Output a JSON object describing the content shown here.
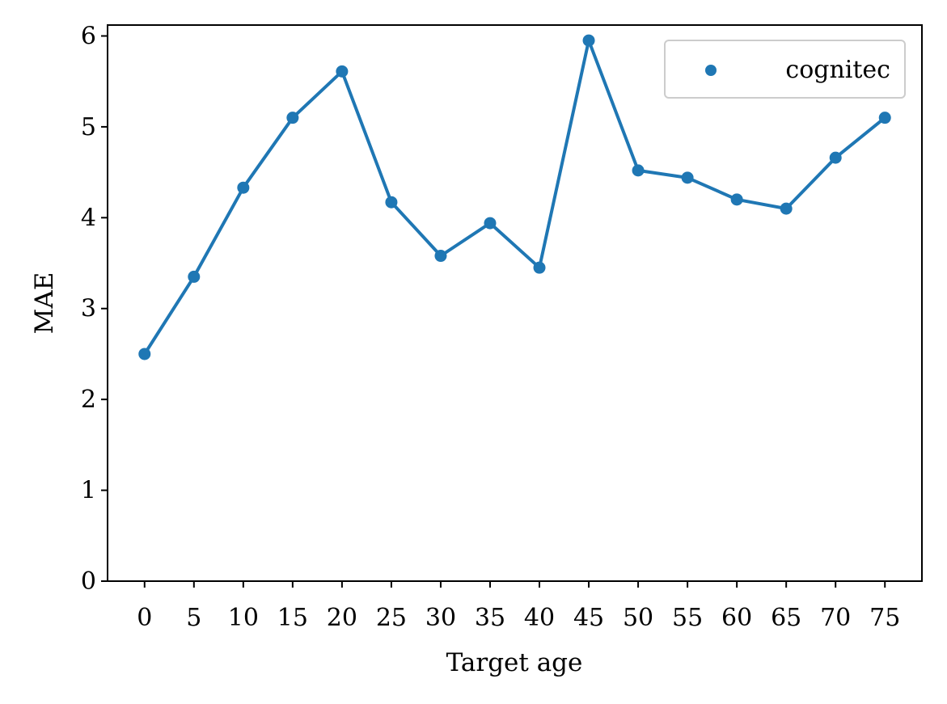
{
  "chart_data": {
    "type": "line",
    "xlabel": "Target age",
    "ylabel": "MAE",
    "xlim": [
      -3.75,
      78.75
    ],
    "ylim": [
      0,
      6.12
    ],
    "x_ticks": [
      "0",
      "5",
      "10",
      "15",
      "20",
      "25",
      "30",
      "35",
      "40",
      "45",
      "50",
      "55",
      "60",
      "65",
      "70",
      "75"
    ],
    "y_ticks": [
      "0",
      "1",
      "2",
      "3",
      "4",
      "5",
      "6"
    ],
    "grid": false,
    "legend_position": "top-right",
    "series": [
      {
        "name": "cognitec",
        "color": "#1f77b4",
        "x": [
          0,
          5,
          10,
          15,
          20,
          25,
          30,
          35,
          40,
          45,
          50,
          55,
          60,
          65,
          70,
          75
        ],
        "values": [
          2.5,
          3.35,
          4.33,
          5.1,
          5.61,
          4.17,
          3.58,
          3.94,
          3.45,
          5.95,
          4.52,
          4.44,
          4.2,
          4.1,
          4.66,
          5.1
        ]
      }
    ]
  }
}
